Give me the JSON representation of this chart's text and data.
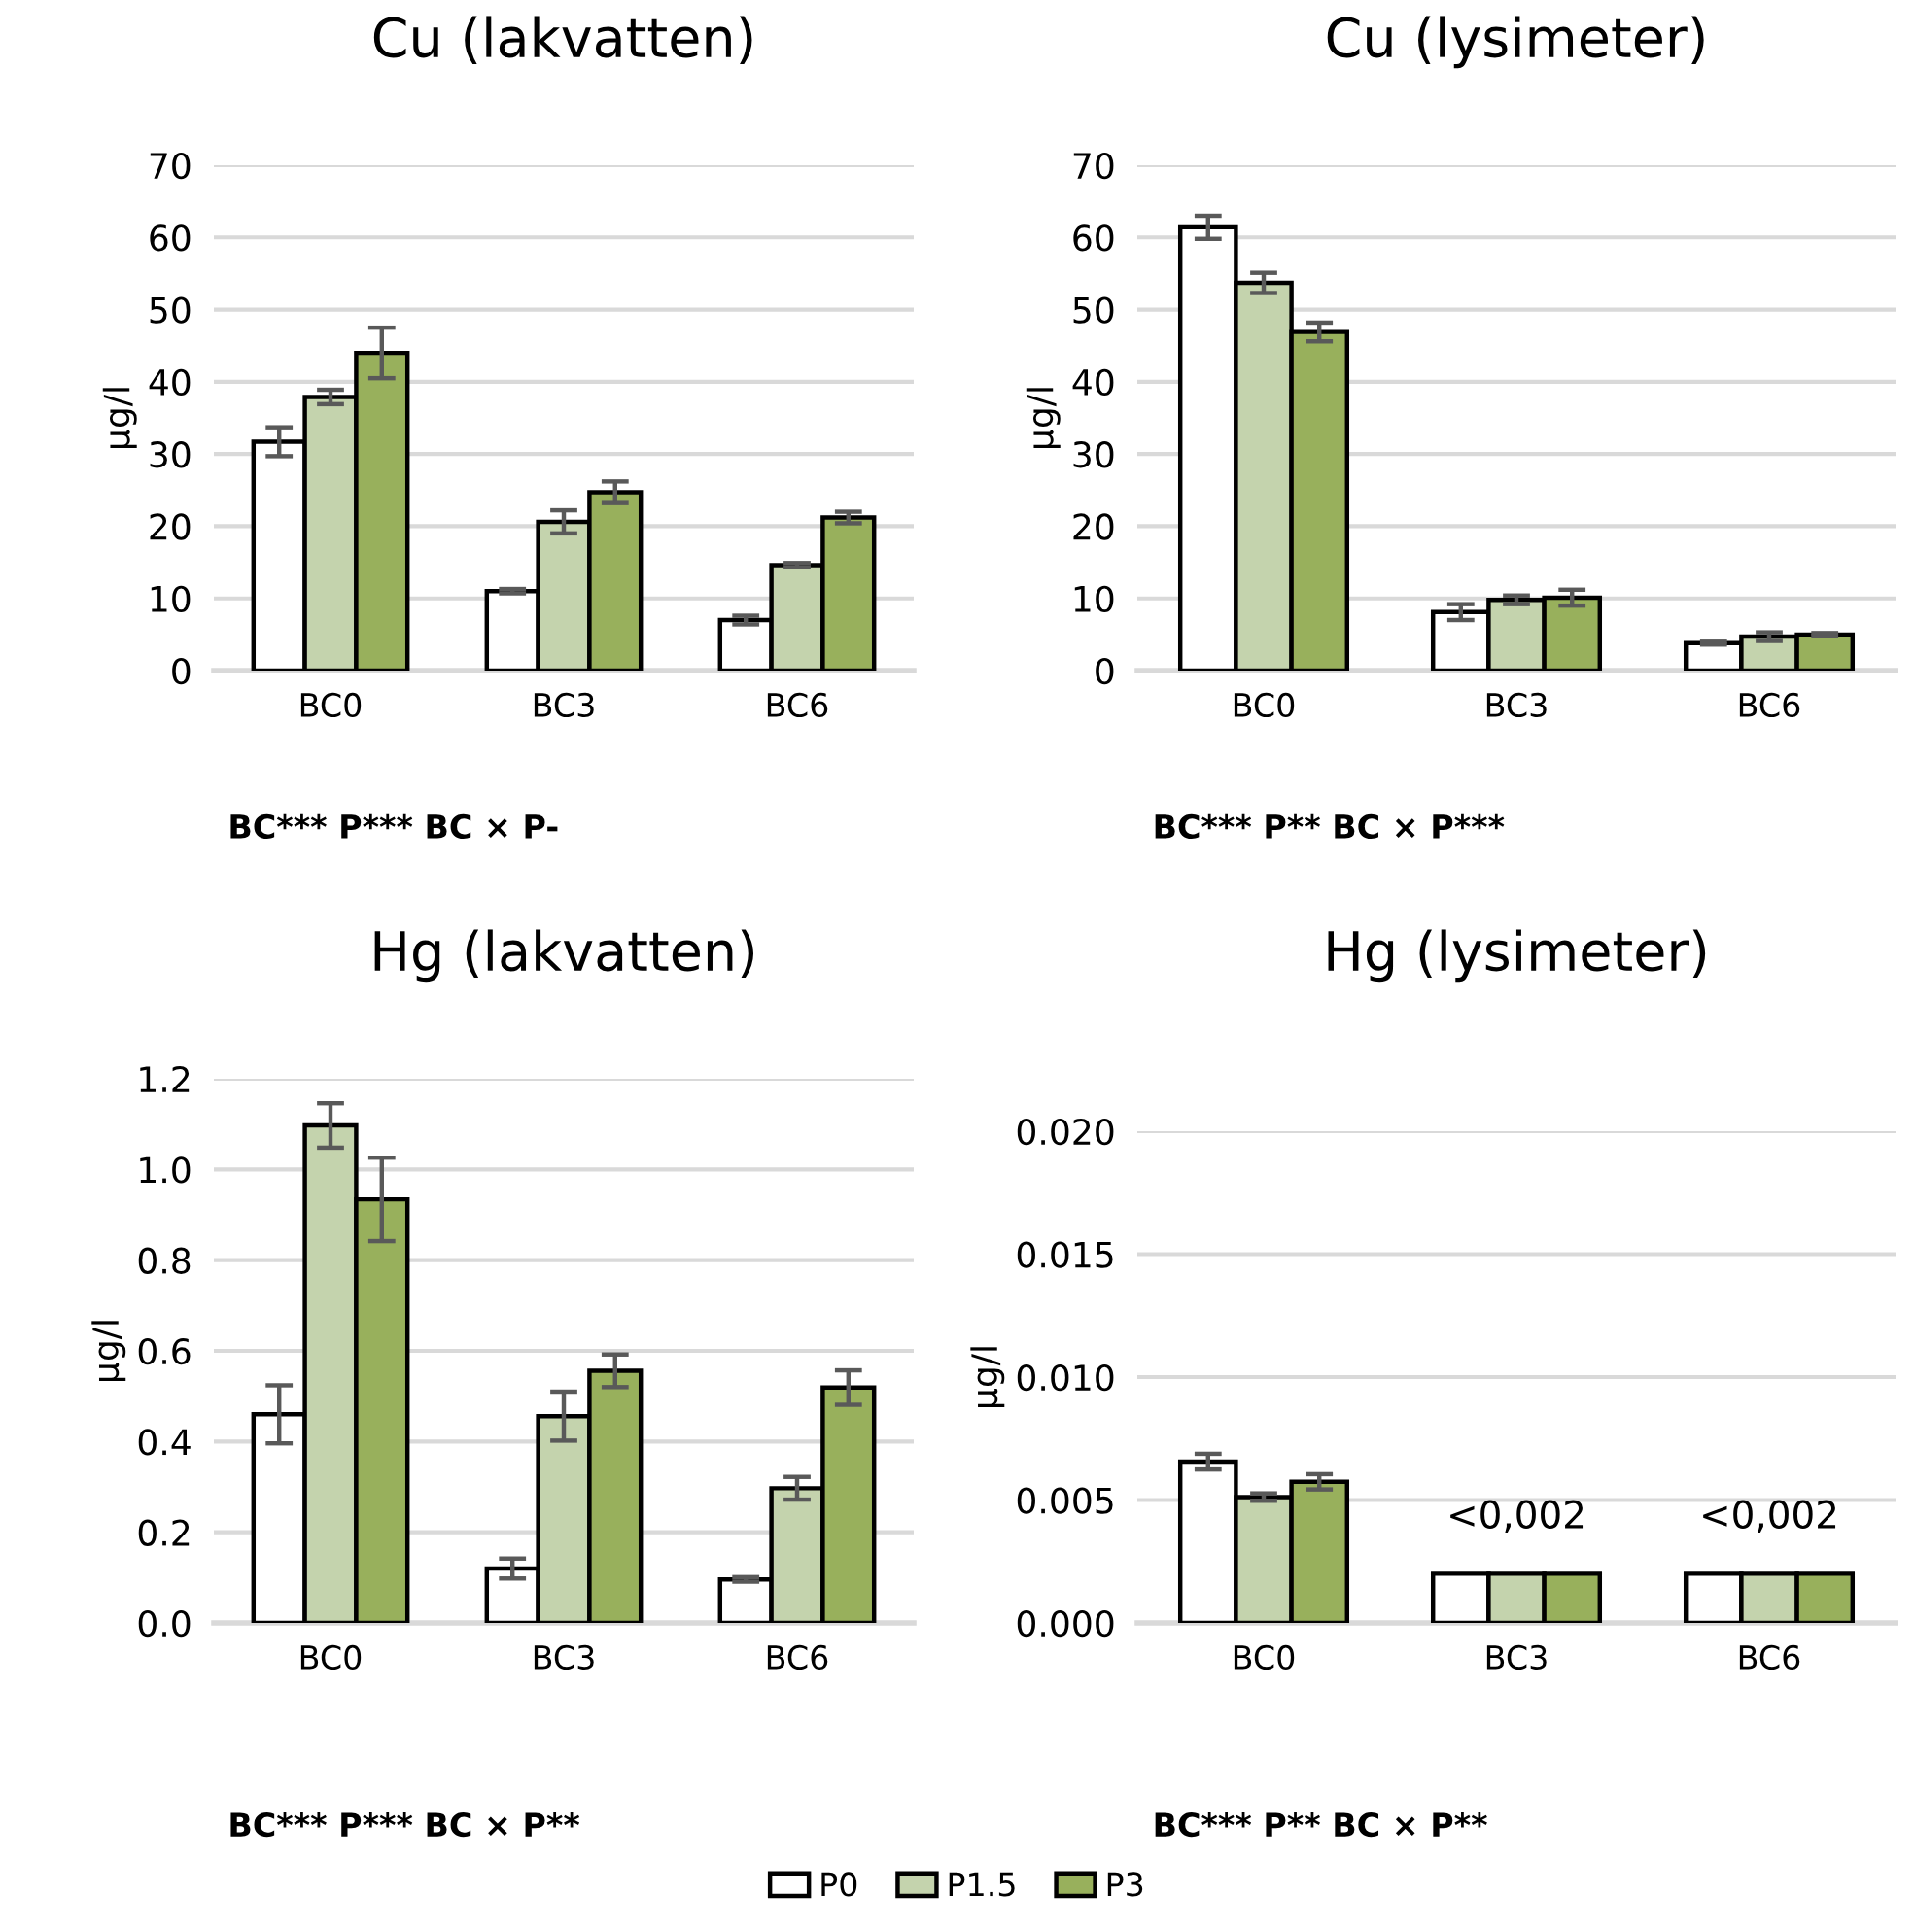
{
  "chart_data": [
    {
      "type": "bar",
      "title": "Cu (lakvatten)",
      "ylabel": "µg/l",
      "categories": [
        "BC0",
        "BC3",
        "BC6"
      ],
      "ylim": [
        0,
        70
      ],
      "yticks": [
        0,
        10,
        20,
        30,
        40,
        50,
        60,
        70
      ],
      "grid": "y",
      "legend": "bottom",
      "series": [
        {
          "name": "P0",
          "color": "#ffffff",
          "values": [
            31.7,
            11.0,
            7.0
          ],
          "errors": [
            2.0,
            0.3,
            0.6
          ]
        },
        {
          "name": "P1.5",
          "color": "#c4d3ad",
          "values": [
            37.9,
            20.6,
            14.6
          ],
          "errors": [
            1.0,
            1.6,
            0.3
          ]
        },
        {
          "name": "P3",
          "color": "#98b05c",
          "values": [
            44.0,
            24.7,
            21.2
          ],
          "errors": [
            3.5,
            1.5,
            0.8
          ]
        }
      ],
      "annotations": [
        "BC*** P*** BC × P-"
      ]
    },
    {
      "type": "bar",
      "title": "Cu (lysimeter)",
      "ylabel": "µg/l",
      "categories": [
        "BC0",
        "BC3",
        "BC6"
      ],
      "ylim": [
        0,
        70
      ],
      "yticks": [
        0,
        10,
        20,
        30,
        40,
        50,
        60,
        70
      ],
      "grid": "y",
      "series": [
        {
          "color": "#ffffff",
          "values": [
            61.4,
            8.1,
            3.8
          ],
          "errors": [
            1.6,
            1.1,
            0.2
          ]
        },
        {
          "color": "#c4d3ad",
          "values": [
            53.7,
            9.8,
            4.7
          ],
          "errors": [
            1.4,
            0.6,
            0.6
          ]
        },
        {
          "color": "#98b05c",
          "values": [
            46.9,
            10.1,
            5.0
          ],
          "errors": [
            1.3,
            1.1,
            0.2
          ]
        }
      ],
      "annotations": [
        "BC*** P** BC × P***"
      ]
    },
    {
      "type": "bar",
      "title": "Hg (lakvatten)",
      "ylabel": "µg/l",
      "categories": [
        "BC0",
        "BC3",
        "BC6"
      ],
      "ylim": [
        0,
        1.2
      ],
      "yticks": [
        {
          "value": 0,
          "label": "0.0"
        },
        {
          "value": 0.2,
          "label": "0.2"
        },
        {
          "value": 0.4,
          "label": "0.4"
        },
        {
          "value": 0.6,
          "label": "0.6"
        },
        {
          "value": 0.8,
          "label": "0.8"
        },
        {
          "value": 1.0,
          "label": "1.0"
        },
        {
          "value": 1.2,
          "label": "1.2"
        }
      ],
      "grid": "y",
      "series": [
        {
          "color": "#ffffff",
          "values": [
            0.46,
            0.12,
            0.096
          ],
          "errors": [
            0.064,
            0.022,
            0.005
          ]
        },
        {
          "color": "#c4d3ad",
          "values": [
            1.097,
            0.456,
            0.297
          ],
          "errors": [
            0.049,
            0.054,
            0.025
          ]
        },
        {
          "color": "#98b05c",
          "values": [
            0.934,
            0.556,
            0.519
          ],
          "errors": [
            0.092,
            0.036,
            0.038
          ]
        }
      ],
      "annotations": [
        "BC*** P*** BC × P**"
      ]
    },
    {
      "type": "bar",
      "title": "Hg (lysimeter)",
      "ylabel": "µg/l",
      "categories": [
        "BC0",
        "BC3",
        "BC6"
      ],
      "ylim": [
        0,
        0.02
      ],
      "yticks": [
        {
          "value": 0,
          "label": "0.000"
        },
        {
          "value": 0.005,
          "label": "0.005"
        },
        {
          "value": 0.01,
          "label": "0.010"
        },
        {
          "value": 0.015,
          "label": "0.015"
        },
        {
          "value": 0.02,
          "label": "0.020"
        }
      ],
      "grid": "y",
      "series": [
        {
          "color": "#ffffff",
          "values": [
            0.00656,
            0.002,
            0.002
          ],
          "errors": [
            0.00032,
            null,
            null
          ]
        },
        {
          "color": "#c4d3ad",
          "values": [
            0.00512,
            0.002,
            0.002
          ],
          "errors": [
            0.00015,
            null,
            null
          ]
        },
        {
          "color": "#98b05c",
          "values": [
            0.00574,
            0.002,
            0.002
          ],
          "errors": [
            0.00031,
            null,
            null
          ]
        }
      ],
      "annotations": [
        {
          "text": "<0,002",
          "x": "BC3",
          "y": 0.002
        },
        {
          "text": "<0,002",
          "x": "BC6",
          "y": 0.002
        },
        "BC*** P** BC × P**"
      ]
    }
  ]
}
